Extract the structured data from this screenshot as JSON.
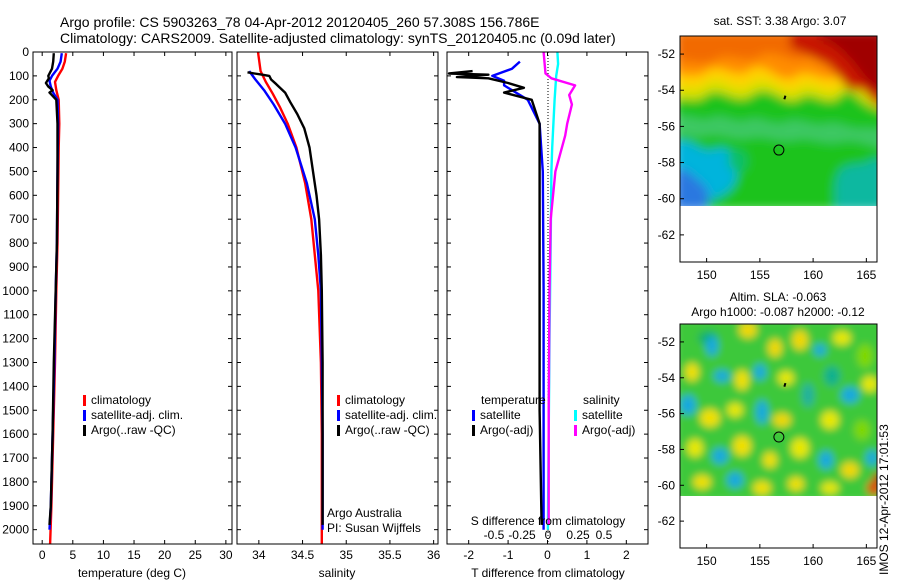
{
  "header": {
    "title_line1": "Argo profile: CS 5903263_78 04-Apr-2012 20120405_260 57.308S 156.786E",
    "title_line2": "Climatology: CARS2009. Satellite-adjusted climatology: synTS_20120405.nc (0.09d later)"
  },
  "colors": {
    "climatology": "#ff0000",
    "satellite": "#0000ff",
    "argo": "#000000",
    "salinity_satellite": "#00ffff",
    "salinity_argo": "#ff00ff"
  },
  "depth_ticks": [
    0,
    100,
    200,
    300,
    400,
    500,
    600,
    700,
    800,
    900,
    1000,
    1100,
    1200,
    1300,
    1400,
    1500,
    1600,
    1700,
    1800,
    1900,
    2000
  ],
  "chart_data": [
    {
      "type": "line",
      "id": "temperature",
      "xlabel": "temperature (deg C)",
      "xlim": [
        -1.5,
        31
      ],
      "xticks": [
        "0",
        "5",
        "10",
        "15",
        "20",
        "25",
        "30"
      ],
      "ylim": [
        0,
        2060
      ],
      "legend": [
        "climatology",
        "satellite-adj. clim.",
        "Argo(..raw -QC)"
      ],
      "series": [
        {
          "name": "climatology",
          "color": "#ff0000",
          "points": [
            [
              3.9,
              5
            ],
            [
              3.7,
              40
            ],
            [
              3.3,
              70
            ],
            [
              2.6,
              100
            ],
            [
              2.1,
              125
            ],
            [
              2.3,
              160
            ],
            [
              2.7,
              200
            ],
            [
              2.8,
              300
            ],
            [
              2.7,
              400
            ],
            [
              2.6,
              600
            ],
            [
              2.5,
              800
            ],
            [
              2.3,
              1000
            ],
            [
              2.1,
              1300
            ],
            [
              1.8,
              1600
            ],
            [
              1.5,
              1900
            ],
            [
              1.3,
              2060
            ]
          ]
        },
        {
          "name": "satellite-adj. clim.",
          "color": "#0000ff",
          "points": [
            [
              3.2,
              5
            ],
            [
              3.0,
              40
            ],
            [
              2.5,
              70
            ],
            [
              1.6,
              100
            ],
            [
              1.2,
              120
            ],
            [
              1.4,
              145
            ],
            [
              1.8,
              170
            ],
            [
              2.5,
              200
            ],
            [
              2.6,
              300
            ],
            [
              2.5,
              500
            ],
            [
              2.4,
              800
            ],
            [
              2.2,
              1000
            ],
            [
              2.0,
              1300
            ],
            [
              1.7,
              1600
            ],
            [
              1.4,
              1900
            ],
            [
              1.2,
              2000
            ]
          ]
        },
        {
          "name": "Argo(..raw -QC)",
          "color": "#000000",
          "points": [
            [
              1.9,
              5
            ],
            [
              1.8,
              40
            ],
            [
              1.6,
              70
            ],
            [
              1.2,
              90
            ],
            [
              1.0,
              100
            ],
            [
              1.1,
              110
            ],
            [
              0.6,
              130
            ],
            [
              1.0,
              145
            ],
            [
              1.7,
              160
            ],
            [
              1.2,
              170
            ],
            [
              2.3,
              200
            ],
            [
              2.5,
              300
            ],
            [
              2.5,
              500
            ],
            [
              2.4,
              800
            ],
            [
              2.2,
              1000
            ],
            [
              1.9,
              1300
            ],
            [
              1.7,
              1600
            ],
            [
              1.4,
              1900
            ],
            [
              1.2,
              1980
            ]
          ]
        }
      ]
    },
    {
      "type": "line",
      "id": "salinity",
      "xlabel": "salinity",
      "xlim": [
        33.75,
        36.05
      ],
      "xticks": [
        "34",
        "34.5",
        "35",
        "35.5",
        "36"
      ],
      "ylim": [
        0,
        2060
      ],
      "legend": [
        "climatology",
        "satellite-adj. clim.",
        "Argo(..raw -QC)"
      ],
      "annotation": [
        "Argo Australia",
        "PI: Susan Wijffels"
      ],
      "series": [
        {
          "name": "climatology",
          "color": "#ff0000",
          "points": [
            [
              33.99,
              0
            ],
            [
              34.02,
              80
            ],
            [
              34.08,
              125
            ],
            [
              34.16,
              175
            ],
            [
              34.24,
              230
            ],
            [
              34.33,
              300
            ],
            [
              34.43,
              400
            ],
            [
              34.53,
              550
            ],
            [
              34.6,
              700
            ],
            [
              34.64,
              850
            ],
            [
              34.68,
              1000
            ],
            [
              34.71,
              1300
            ],
            [
              34.72,
              1600
            ],
            [
              34.72,
              1900
            ],
            [
              34.72,
              2060
            ]
          ]
        },
        {
          "name": "satellite-adj. clim.",
          "color": "#0000ff",
          "points": [
            [
              33.89,
              80
            ],
            [
              33.96,
              115
            ],
            [
              34.06,
              160
            ],
            [
              34.17,
              220
            ],
            [
              34.3,
              300
            ],
            [
              34.42,
              400
            ],
            [
              34.55,
              550
            ],
            [
              34.64,
              700
            ],
            [
              34.68,
              850
            ],
            [
              34.71,
              1000
            ],
            [
              34.72,
              1300
            ],
            [
              34.73,
              1600
            ],
            [
              34.73,
              1900
            ],
            [
              34.73,
              2000
            ]
          ]
        },
        {
          "name": "Argo(..raw -QC)",
          "color": "#000000",
          "points": [
            [
              33.87,
              85
            ],
            [
              33.95,
              90
            ],
            [
              34.04,
              95
            ],
            [
              34.12,
              100
            ],
            [
              34.14,
              115
            ],
            [
              34.2,
              135
            ],
            [
              34.3,
              170
            ],
            [
              34.36,
              210
            ],
            [
              34.44,
              260
            ],
            [
              34.52,
              320
            ],
            [
              34.58,
              400
            ],
            [
              34.62,
              500
            ],
            [
              34.66,
              600
            ],
            [
              34.69,
              700
            ],
            [
              34.71,
              850
            ],
            [
              34.72,
              1000
            ],
            [
              34.73,
              1300
            ],
            [
              34.73,
              1600
            ],
            [
              34.73,
              1900
            ],
            [
              34.73,
              1980
            ]
          ]
        }
      ]
    },
    {
      "type": "line",
      "id": "difference",
      "xlabel": "T difference from climatology",
      "xlabel_top": "S difference from climatology",
      "xlim": [
        -2.55,
        2.55
      ],
      "xticks": [
        "-2",
        "-1",
        "0",
        "1",
        "2"
      ],
      "xticks_s": [
        "-0.5",
        "-0.25",
        "0",
        "0.25",
        "0.5"
      ],
      "ylim": [
        0,
        2060
      ],
      "legend_temperature": {
        "title": "temperature",
        "items": [
          "satellite",
          "Argo(-adj)"
        ]
      },
      "legend_salinity": {
        "title": "salinity",
        "items": [
          "satellite",
          "Argo(-adj)"
        ]
      },
      "series": [
        {
          "name": "temperature satellite",
          "color": "#0000ff",
          "points": [
            [
              -0.7,
              40
            ],
            [
              -0.9,
              70
            ],
            [
              -1.4,
              100
            ],
            [
              -1.1,
              120
            ],
            [
              -1.1,
              140
            ],
            [
              -0.5,
              200
            ],
            [
              -0.2,
              300
            ],
            [
              -0.12,
              500
            ],
            [
              -0.1,
              1000
            ],
            [
              -0.1,
              1500
            ],
            [
              -0.1,
              2000
            ]
          ]
        },
        {
          "name": "temperature Argo(-adj)",
          "color": "#000000",
          "points": [
            [
              -1.9,
              80
            ],
            [
              -2.5,
              90
            ],
            [
              -1.5,
              95
            ],
            [
              -2.3,
              105
            ],
            [
              -1.5,
              110
            ],
            [
              -1.0,
              130
            ],
            [
              -0.6,
              150
            ],
            [
              -1.1,
              170
            ],
            [
              -0.4,
              200
            ],
            [
              -0.2,
              300
            ],
            [
              -0.2,
              500
            ],
            [
              -0.2,
              700
            ],
            [
              -0.2,
              1000
            ],
            [
              -0.2,
              1500
            ],
            [
              -0.15,
              1980
            ]
          ]
        },
        {
          "name": "salinity satellite",
          "color": "#00ffff",
          "points": [
            [
              0.25,
              0
            ],
            [
              0.27,
              50
            ],
            [
              0.22,
              100
            ],
            [
              0.2,
              150
            ],
            [
              0.18,
              200
            ],
            [
              0.15,
              300
            ],
            [
              0.12,
              400
            ],
            [
              0.1,
              500
            ],
            [
              0.08,
              800
            ],
            [
              0.05,
              1200
            ],
            [
              0.03,
              1600
            ],
            [
              0.01,
              2000
            ]
          ]
        },
        {
          "name": "salinity Argo(-adj)",
          "color": "#ff00ff",
          "points": [
            [
              -0.1,
              0
            ],
            [
              -0.05,
              90
            ],
            [
              0.1,
              110
            ],
            [
              0.7,
              140
            ],
            [
              0.55,
              180
            ],
            [
              0.62,
              220
            ],
            [
              0.5,
              300
            ],
            [
              0.45,
              350
            ],
            [
              0.2,
              500
            ],
            [
              0.08,
              700
            ],
            [
              0.05,
              1000
            ],
            [
              0.03,
              1500
            ],
            [
              0.03,
              1980
            ]
          ]
        }
      ]
    },
    {
      "type": "heatmap",
      "id": "sst-map",
      "title": "sat. SST: 3.38 Argo: 3.07",
      "xlim": [
        147.5,
        166
      ],
      "ylim": [
        -63.5,
        -51
      ],
      "xticks": [
        "150",
        "155",
        "160",
        "165"
      ],
      "yticks": [
        "-52",
        "-54",
        "-56",
        "-58",
        "-60",
        "-62"
      ],
      "profile_position": [
        156.786,
        -57.308
      ],
      "data_bottom": -60
    },
    {
      "type": "heatmap",
      "id": "sla-map",
      "title_line1": "Altim. SLA: -0.063",
      "title_line2": "Argo h1000: -0.087 h2000: -0.12",
      "xlim": [
        147.5,
        166
      ],
      "ylim": [
        -63.5,
        -51
      ],
      "xticks": [
        "150",
        "155",
        "160",
        "165"
      ],
      "yticks": [
        "-52",
        "-54",
        "-56",
        "-58",
        "-60",
        "-62"
      ],
      "profile_position": [
        156.786,
        -57.308
      ],
      "data_bottom": -60
    }
  ],
  "timestamp": "IMOS 12-Apr-2012 17:01:53"
}
